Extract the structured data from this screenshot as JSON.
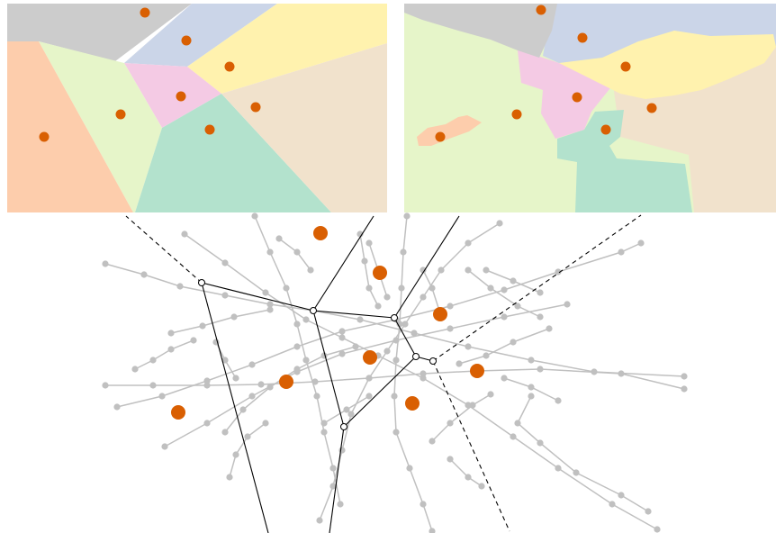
{
  "figure": {
    "panels": [
      {
        "name": "euclidean-voronoi-panel",
        "type": "voronoi-partition"
      },
      {
        "name": "network-voronoi-panel",
        "type": "network-voronoi-partition"
      },
      {
        "name": "road-network-panel",
        "type": "network-graph"
      }
    ],
    "colors": {
      "site": "#d95f02",
      "road": "#c0c0c0",
      "boundary": "#000000",
      "regions": [
        "#cccccc",
        "#cbd5e8",
        "#fff2ae",
        "#f4cae4",
        "#e6f5c9",
        "#fdcdac",
        "#b3e2cd",
        "#f1e2cc"
      ]
    },
    "site_count": 8,
    "region_count": 8
  }
}
